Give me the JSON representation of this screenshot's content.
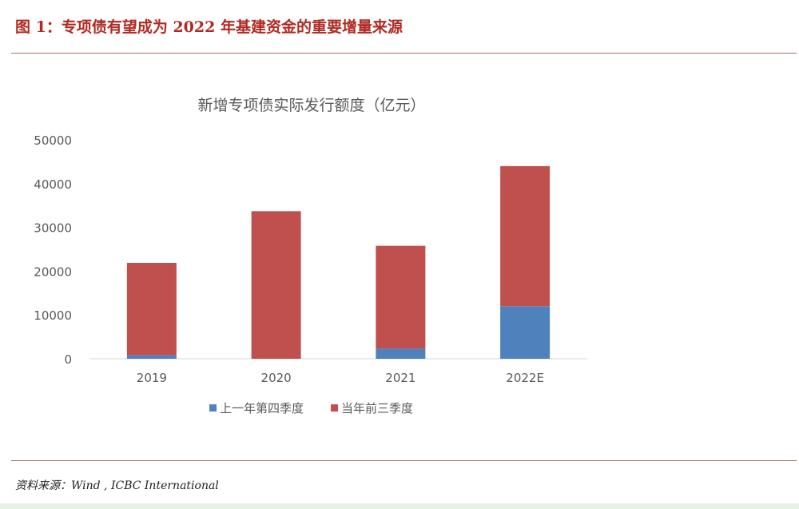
{
  "figure": {
    "title": "图 1：专项债有望成为 2022 年基建资金的重要增量来源",
    "source": "资料来源：Wind , ICBC International"
  },
  "chart_data": {
    "type": "bar",
    "stacked": true,
    "title": "新增专项债实际发行额度（亿元）",
    "categories": [
      "2019",
      "2020",
      "2021",
      "2022E"
    ],
    "series": [
      {
        "name": "上一年第四季度",
        "color": "#4f81bd",
        "values": [
          800,
          0,
          2300,
          12000
        ]
      },
      {
        "name": "当年前三季度",
        "color": "#c0504d",
        "values": [
          21100,
          33700,
          23500,
          32000
        ]
      }
    ],
    "ylim": [
      0,
      50000
    ],
    "yticks": [
      0,
      10000,
      20000,
      30000,
      40000,
      50000
    ],
    "grid": false,
    "legend_position": "bottom"
  }
}
